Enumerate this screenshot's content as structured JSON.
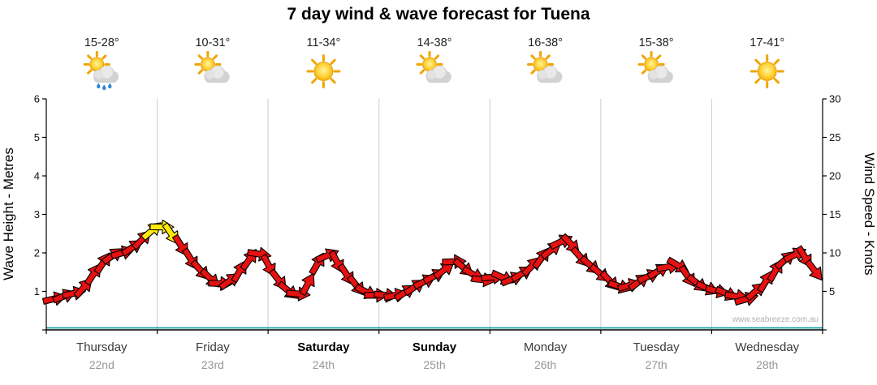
{
  "title": "7 day wind & wave forecast for Tuena",
  "watermark": "www.seabreeze.com.au",
  "y_left": {
    "label": "Wave Height - Metres",
    "min": 0,
    "max": 6,
    "ticks": [
      0,
      1,
      2,
      3,
      4,
      5,
      6
    ]
  },
  "y_right": {
    "label": "Wind Speed - Knots",
    "min": 0,
    "max": 30,
    "ticks": [
      0,
      5,
      10,
      15,
      20,
      25,
      30
    ]
  },
  "days": [
    {
      "name": "Thursday",
      "date": "22nd",
      "temp": "15-28°",
      "icon": "partly-cloudy-rain",
      "weekend": false
    },
    {
      "name": "Friday",
      "date": "23rd",
      "temp": "10-31°",
      "icon": "partly-cloudy",
      "weekend": false
    },
    {
      "name": "Saturday",
      "date": "24th",
      "temp": "11-34°",
      "icon": "sunny",
      "weekend": true
    },
    {
      "name": "Sunday",
      "date": "25th",
      "temp": "14-38°",
      "icon": "partly-cloudy",
      "weekend": true
    },
    {
      "name": "Monday",
      "date": "26th",
      "temp": "16-38°",
      "icon": "partly-cloudy",
      "weekend": false
    },
    {
      "name": "Tuesday",
      "date": "27th",
      "temp": "15-38°",
      "icon": "partly-cloudy",
      "weekend": false
    },
    {
      "name": "Wednesday",
      "date": "28th",
      "temp": "17-41°",
      "icon": "sunny",
      "weekend": false
    }
  ],
  "colors": {
    "arrow_red": "#e61111",
    "arrow_yellow": "#ffe90a",
    "arrow_outline": "#000000",
    "grid": "#cccccc",
    "axis": "#000000",
    "wave_line": "#0a9aa0",
    "day_label": "#3a3a3a",
    "weekend_label": "#000000",
    "date_label": "#979797",
    "temp_label": "#222222",
    "watermark": "#b0b0b0"
  },
  "chart_data": {
    "type": "line",
    "style": "wind-direction-arrows",
    "title": "7 day wind & wave forecast for Tuena",
    "categories": [
      "Thursday 22nd",
      "Friday 23rd",
      "Saturday 24th",
      "Sunday 25th",
      "Monday 26th",
      "Tuesday 27th",
      "Wednesday 28th"
    ],
    "points_per_day": 8,
    "time_step_hours": 3,
    "series": [
      {
        "name": "Wind Speed (knots)",
        "axis": "right",
        "values": [
          4,
          4.5,
          5,
          7.5,
          9.5,
          10,
          11,
          12.8,
          13.5,
          11.5,
          9,
          7,
          6,
          6.5,
          9,
          10,
          7,
          5,
          4.5,
          8.5,
          10,
          7.5,
          5.5,
          4.5,
          4.5,
          4.5,
          5.5,
          6.5,
          7.5,
          9,
          7.5,
          6.5,
          7,
          6.5,
          7.5,
          9,
          10.5,
          12,
          9.5,
          8,
          6.5,
          5.5,
          6,
          7,
          8,
          8.5,
          6.5,
          5.5,
          5,
          4.5,
          4,
          5.5,
          7.5,
          9.5,
          10,
          7.5
        ]
      }
    ],
    "wave_height_constant_m": 0.05,
    "yellow_threshold_knots": 12.05,
    "ylim_left": [
      0,
      6
    ],
    "ylim_right": [
      0,
      30
    ],
    "legend": "none",
    "grid": "vertical-day-boundaries"
  }
}
